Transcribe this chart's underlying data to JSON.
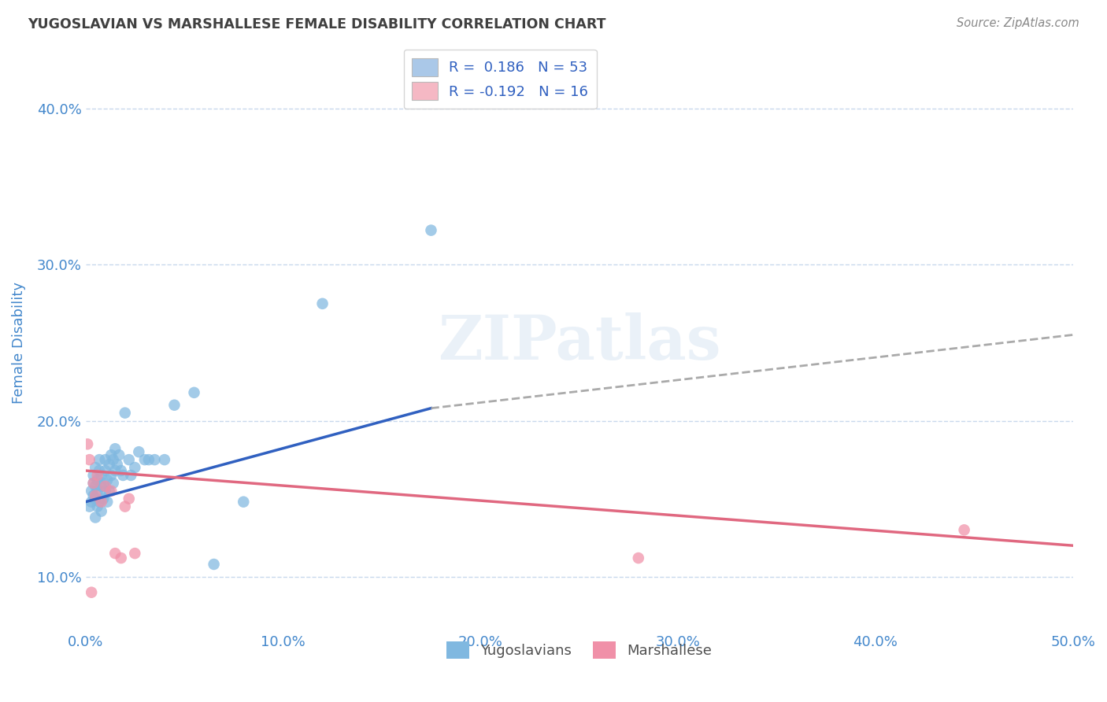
{
  "title": "YUGOSLAVIAN VS MARSHALLESE FEMALE DISABILITY CORRELATION CHART",
  "source": "Source: ZipAtlas.com",
  "ylabel": "Female Disability",
  "xlim": [
    0.0,
    0.5
  ],
  "ylim": [
    0.065,
    0.435
  ],
  "yticks": [
    0.1,
    0.2,
    0.3,
    0.4
  ],
  "ytick_labels": [
    "10.0%",
    "20.0%",
    "30.0%",
    "40.0%"
  ],
  "xticks": [
    0.0,
    0.1,
    0.2,
    0.3,
    0.4,
    0.5
  ],
  "xtick_labels": [
    "0.0%",
    "10.0%",
    "20.0%",
    "30.0%",
    "40.0%",
    "50.0%"
  ],
  "legend_entries": [
    {
      "label": "R =  0.186   N = 53",
      "color": "#aac8e8"
    },
    {
      "label": "R = -0.192   N = 16",
      "color": "#f5b8c4"
    }
  ],
  "series1_name": "Yugoslavians",
  "series1_color": "#80b8e0",
  "series2_name": "Marshallese",
  "series2_color": "#f090a8",
  "trend1_color": "#3060c0",
  "trend2_color": "#e06880",
  "trend1_dashed_color": "#aaaaaa",
  "background_color": "#ffffff",
  "grid_color": "#c8d8ec",
  "title_color": "#404040",
  "axis_label_color": "#4488cc",
  "watermark": "ZIPatlas",
  "yugoslav_x": [
    0.002,
    0.003,
    0.003,
    0.004,
    0.004,
    0.004,
    0.005,
    0.005,
    0.005,
    0.005,
    0.006,
    0.006,
    0.006,
    0.007,
    0.007,
    0.007,
    0.008,
    0.008,
    0.008,
    0.009,
    0.009,
    0.01,
    0.01,
    0.01,
    0.011,
    0.011,
    0.012,
    0.012,
    0.013,
    0.013,
    0.014,
    0.014,
    0.015,
    0.015,
    0.016,
    0.017,
    0.018,
    0.019,
    0.02,
    0.022,
    0.023,
    0.025,
    0.027,
    0.03,
    0.032,
    0.035,
    0.04,
    0.045,
    0.055,
    0.065,
    0.08,
    0.12,
    0.175
  ],
  "yugoslav_y": [
    0.145,
    0.155,
    0.148,
    0.152,
    0.16,
    0.165,
    0.138,
    0.15,
    0.158,
    0.17,
    0.145,
    0.155,
    0.162,
    0.148,
    0.168,
    0.175,
    0.142,
    0.158,
    0.165,
    0.15,
    0.16,
    0.175,
    0.155,
    0.168,
    0.148,
    0.162,
    0.155,
    0.172,
    0.165,
    0.178,
    0.16,
    0.175,
    0.168,
    0.182,
    0.172,
    0.178,
    0.168,
    0.165,
    0.205,
    0.175,
    0.165,
    0.17,
    0.18,
    0.175,
    0.175,
    0.175,
    0.175,
    0.21,
    0.218,
    0.108,
    0.148,
    0.275,
    0.322
  ],
  "marshall_x": [
    0.001,
    0.002,
    0.003,
    0.004,
    0.005,
    0.006,
    0.008,
    0.01,
    0.013,
    0.015,
    0.018,
    0.02,
    0.022,
    0.025,
    0.28,
    0.445
  ],
  "marshall_y": [
    0.185,
    0.175,
    0.09,
    0.16,
    0.152,
    0.165,
    0.148,
    0.158,
    0.155,
    0.115,
    0.112,
    0.145,
    0.15,
    0.115,
    0.112,
    0.13
  ],
  "trend1_x_solid_end": 0.175,
  "trend1_y_start": 0.148,
  "trend1_y_solid_end": 0.208,
  "trend1_y_end": 0.255,
  "trend2_y_start": 0.168,
  "trend2_y_end": 0.12
}
